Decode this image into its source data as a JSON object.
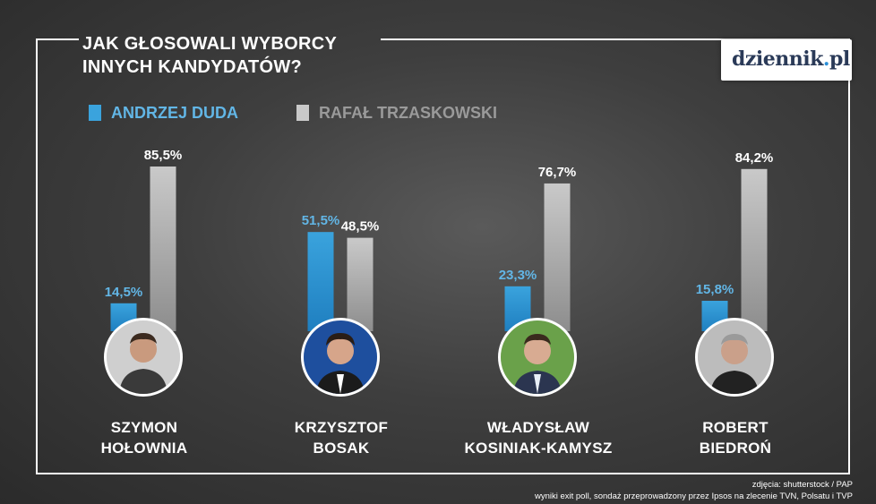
{
  "title": {
    "line1": "JAK GŁOSOWALI WYBORCY",
    "line2": "INNYCH KANDYDATÓW?"
  },
  "logo": {
    "main": "dziennik",
    "dot": ".",
    "suffix": "pl"
  },
  "colors": {
    "duda": "#3aa3dd",
    "trzaskowski": "#c9c9c9",
    "duda_label": "#62b6e6",
    "trzaskowski_label": "#9a9a9a",
    "text": "#ffffff"
  },
  "chart_data": {
    "type": "bar",
    "title": "JAK GŁOSOWALI WYBORCY INNYCH KANDYDATÓW?",
    "categories": [
      "SZYMON HOŁOWNIA",
      "KRZYSZTOF BOSAK",
      "WŁADYSŁAW KOSINIAK-KAMYSZ",
      "ROBERT BIEDROŃ"
    ],
    "series": [
      {
        "name": "ANDRZEJ DUDA",
        "values": [
          14.5,
          51.5,
          23.3,
          15.8
        ],
        "labels": [
          "14,5%",
          "51,5%",
          "23,3%",
          "15,8%"
        ]
      },
      {
        "name": "RAFAŁ TRZASKOWSKI",
        "values": [
          85.5,
          48.5,
          76.7,
          84.2
        ],
        "labels": [
          "85,5%",
          "48,5%",
          "76,7%",
          "84,2%"
        ]
      }
    ],
    "legend_position": "top-left",
    "grid": false
  },
  "candidates": [
    {
      "first": "SZYMON",
      "last": "HOŁOWNIA",
      "avatar_icon": "person-photo-icon"
    },
    {
      "first": "KRZYSZTOF",
      "last": "BOSAK",
      "avatar_icon": "person-photo-icon"
    },
    {
      "first": "WŁADYSŁAW",
      "last": "KOSINIAK-KAMYSZ",
      "avatar_icon": "person-photo-icon"
    },
    {
      "first": "ROBERT",
      "last": "BIEDROŃ",
      "avatar_icon": "person-photo-icon"
    }
  ],
  "footer": {
    "line1": "zdjęcia: shutterstock / PAP",
    "line2": "wyniki exit poll, sondaż przeprowadzony przez Ipsos na zlecenie TVN, Polsatu i TVP"
  }
}
